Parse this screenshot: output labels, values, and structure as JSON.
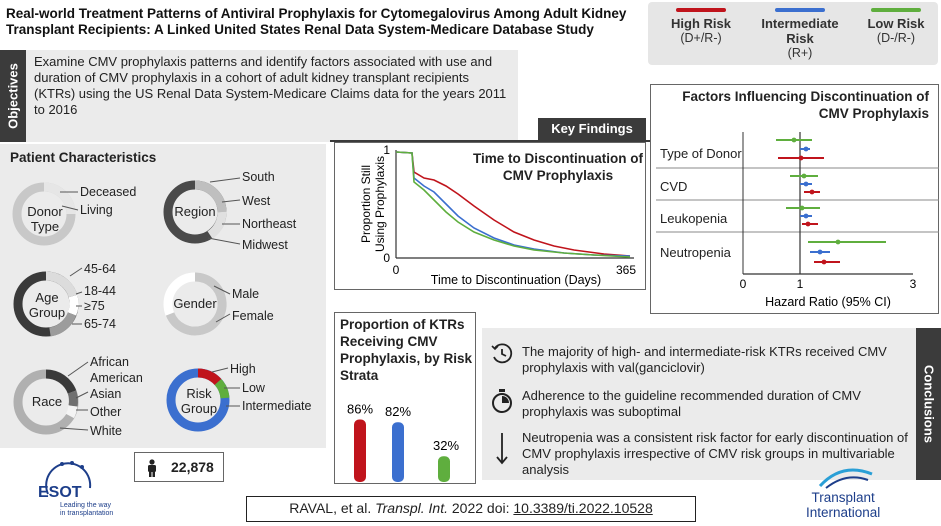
{
  "title": "Real-world Treatment Patterns of Antiviral Prophylaxis for Cytomegalovirus Among Adult Kidney Transplant Recipients: A Linked United States Renal Data System-Medicare Database Study",
  "legend": [
    {
      "label": "High Risk",
      "sub": "(D+/R-)",
      "color": "#c0141c"
    },
    {
      "label": "Intermediate Risk",
      "sub": "(R+)",
      "color": "#3b6fcf"
    },
    {
      "label": "Low Risk",
      "sub": "(D-/R-)",
      "color": "#5fae3e"
    }
  ],
  "objectives": {
    "tab": "Objectives",
    "text": "Examine CMV prophylaxis patterns and identify factors associated with use and duration of CMV prophylaxis in a cohort of adult kidney transplant recipients (KTRs) using the US Renal Data System-Medicare Claims data for the years 2011 to 2016"
  },
  "key_findings": "Key Findings",
  "patient": {
    "title": "Patient Characteristics",
    "donor": {
      "label1": "Donor",
      "label2": "Type",
      "cats": [
        "Deceased",
        "Living"
      ]
    },
    "region": {
      "label": "Region",
      "cats": [
        "South",
        "West",
        "Northeast",
        "Midwest"
      ]
    },
    "age": {
      "label1": "Age",
      "label2": "Group",
      "cats": [
        "45-64",
        "18-44",
        "≥75",
        "65-74"
      ]
    },
    "gender": {
      "label": "Gender",
      "cats": [
        "Male",
        "Female"
      ]
    },
    "race": {
      "label": "Race",
      "cats": [
        "African",
        "American",
        "Asian",
        "Other",
        "White"
      ]
    },
    "risk": {
      "label1": "Risk",
      "label2": "Group",
      "cats": [
        "High",
        "Low",
        "Intermediate"
      ]
    },
    "count": "22,878"
  },
  "ttd": {
    "title": "Time to Discontinuation of CMV Prophylaxis",
    "ylabel1": "Proportion Still",
    "ylabel2": "Using Prophylaxis",
    "xlabel": "Time to Discontinuation (Days)",
    "x_ticks": [
      "0",
      "365"
    ],
    "y_ticks": [
      "0",
      "1"
    ]
  },
  "proportion": {
    "title": "Proportion of KTRs Receiving CMV Prophylaxis, by Risk Strata",
    "bars": [
      {
        "label": "86%",
        "value": 86,
        "color": "#c0141c"
      },
      {
        "label": "82%",
        "value": 82,
        "color": "#3b6fcf"
      },
      {
        "label": "32%",
        "value": 32,
        "color": "#5fae3e"
      }
    ]
  },
  "forest": {
    "title": "Factors Influencing Discontinuation of CMV Prophylaxis",
    "rows": [
      "Type of Donor",
      "CVD",
      "Leukopenia",
      "Neutropenia"
    ],
    "x_ticks": [
      "0",
      "1",
      "3"
    ],
    "xlabel": "Hazard Ratio (95% CI)"
  },
  "conclusions": {
    "tab": "Conclusions",
    "items": [
      {
        "icon": "clock-history-icon",
        "text": "The majority of high- and intermediate-risk KTRs received CMV prophylaxis with val(ganciclovir)"
      },
      {
        "icon": "stopwatch-icon",
        "text": "Adherence to the guideline recommended duration of CMV prophylaxis was suboptimal"
      },
      {
        "icon": "down-arrow-icon",
        "text": "Neutropenia was a consistent risk factor for early discontinuation of CMV prophylaxis irrespective of CMV risk groups in multivariable analysis"
      }
    ]
  },
  "citation": {
    "authors": "RAVAL,  et al. ",
    "journal": "Transpl. Int.",
    "rest": " 2022 doi: ",
    "doi": "10.3389/ti.2022.10528"
  },
  "logos": {
    "esot": "ESOT",
    "esot_tag1": "Leading the way",
    "esot_tag2": "in transplantation",
    "ti1": "Transplant",
    "ti2": "International"
  }
}
